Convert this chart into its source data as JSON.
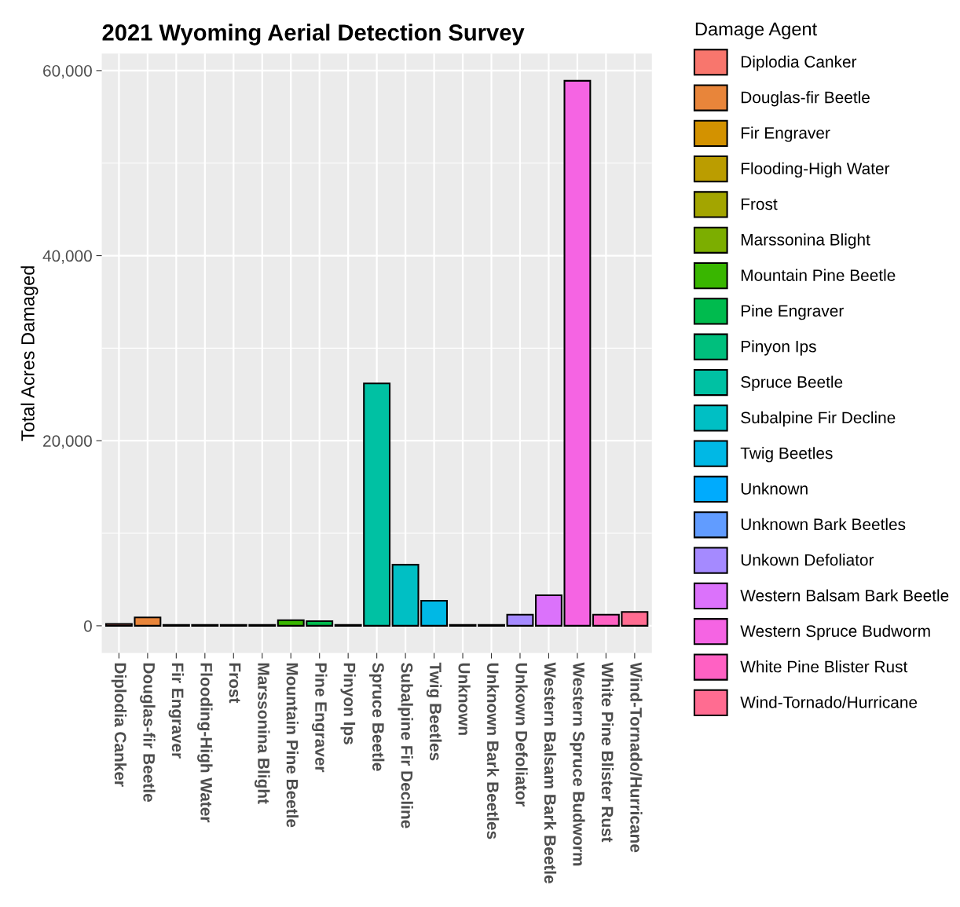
{
  "chart_data": {
    "type": "bar",
    "title": "2021 Wyoming Aerial Detection Survey",
    "ylabel": "Total Acres Damaged",
    "legend_title": "Damage Agent",
    "categories": [
      "Diplodia Canker",
      "Douglas-fir Beetle",
      "Fir Engraver",
      "Flooding-High Water",
      "Frost",
      "Marssonina Blight",
      "Mountain Pine Beetle",
      "Pine Engraver",
      "Pinyon Ips",
      "Spruce Beetle",
      "Subalpine Fir Decline",
      "Twig Beetles",
      "Unknown",
      "Unknown Bark Beetles",
      "Unkown Defoliator",
      "Western Balsam Bark Beetle",
      "Western Spruce Budworm",
      "White Pine Blister Rust",
      "Wind-Tornado/Hurricane"
    ],
    "series": [
      {
        "name": "Diplodia Canker",
        "color": "#F8766D",
        "values": [
          200,
          null,
          null,
          null,
          null,
          null,
          null,
          null,
          null,
          null,
          null,
          null,
          null,
          null,
          null,
          null,
          null,
          null,
          null
        ]
      },
      {
        "name": "Douglas-fir Beetle",
        "color": "#E8853A",
        "values": [
          null,
          900,
          null,
          null,
          null,
          null,
          null,
          null,
          null,
          null,
          null,
          null,
          null,
          null,
          null,
          null,
          null,
          null,
          null
        ]
      },
      {
        "name": "Fir Engraver",
        "color": "#D39200",
        "values": [
          null,
          null,
          100,
          null,
          null,
          null,
          null,
          null,
          null,
          null,
          null,
          null,
          null,
          null,
          null,
          null,
          null,
          null,
          null
        ]
      },
      {
        "name": "Flooding-High Water",
        "color": "#BB9D00",
        "values": [
          null,
          null,
          null,
          100,
          null,
          null,
          null,
          null,
          null,
          null,
          null,
          null,
          null,
          null,
          null,
          null,
          null,
          null,
          null
        ]
      },
      {
        "name": "Frost",
        "color": "#A3A500",
        "values": [
          null,
          null,
          null,
          null,
          100,
          null,
          null,
          null,
          null,
          null,
          null,
          null,
          null,
          null,
          null,
          null,
          null,
          null,
          null
        ]
      },
      {
        "name": "Marssonina Blight",
        "color": "#7CAE00",
        "values": [
          null,
          null,
          null,
          null,
          null,
          100,
          null,
          null,
          null,
          null,
          null,
          null,
          null,
          null,
          null,
          null,
          null,
          null,
          null
        ]
      },
      {
        "name": "Mountain Pine Beetle",
        "color": "#39B600",
        "values": [
          null,
          null,
          null,
          null,
          null,
          null,
          600,
          null,
          null,
          null,
          null,
          null,
          null,
          null,
          null,
          null,
          null,
          null,
          null
        ]
      },
      {
        "name": "Pine Engraver",
        "color": "#00BB4E",
        "values": [
          null,
          null,
          null,
          null,
          null,
          null,
          null,
          500,
          null,
          null,
          null,
          null,
          null,
          null,
          null,
          null,
          null,
          null,
          null
        ]
      },
      {
        "name": "Pinyon Ips",
        "color": "#00BF7D",
        "values": [
          null,
          null,
          null,
          null,
          null,
          null,
          null,
          null,
          100,
          null,
          null,
          null,
          null,
          null,
          null,
          null,
          null,
          null,
          null
        ]
      },
      {
        "name": "Spruce Beetle",
        "color": "#00C1A3",
        "values": [
          null,
          null,
          null,
          null,
          null,
          null,
          null,
          null,
          null,
          26200,
          null,
          null,
          null,
          null,
          null,
          null,
          null,
          null,
          null
        ]
      },
      {
        "name": "Subalpine Fir Decline",
        "color": "#00BFC4",
        "values": [
          null,
          null,
          null,
          null,
          null,
          null,
          null,
          null,
          null,
          null,
          6600,
          null,
          null,
          null,
          null,
          null,
          null,
          null,
          null
        ]
      },
      {
        "name": "Twig Beetles",
        "color": "#00B8E5",
        "values": [
          null,
          null,
          null,
          null,
          null,
          null,
          null,
          null,
          null,
          null,
          null,
          2700,
          null,
          null,
          null,
          null,
          null,
          null,
          null
        ]
      },
      {
        "name": "Unknown",
        "color": "#00ABFD",
        "values": [
          null,
          null,
          null,
          null,
          null,
          null,
          null,
          null,
          null,
          null,
          null,
          null,
          100,
          null,
          null,
          null,
          null,
          null,
          null
        ]
      },
      {
        "name": "Unknown Bark Beetles",
        "color": "#619CFF",
        "values": [
          null,
          null,
          null,
          null,
          null,
          null,
          null,
          null,
          null,
          null,
          null,
          null,
          null,
          100,
          null,
          null,
          null,
          null,
          null
        ]
      },
      {
        "name": "Unkown Defoliator",
        "color": "#A58AFF",
        "values": [
          null,
          null,
          null,
          null,
          null,
          null,
          null,
          null,
          null,
          null,
          null,
          null,
          null,
          null,
          1200,
          null,
          null,
          null,
          null
        ]
      },
      {
        "name": "Western Balsam Bark Beetle",
        "color": "#DB72FB",
        "values": [
          null,
          null,
          null,
          null,
          null,
          null,
          null,
          null,
          null,
          null,
          null,
          null,
          null,
          null,
          null,
          3300,
          null,
          null,
          null
        ]
      },
      {
        "name": "Western Spruce Budworm",
        "color": "#F564E3",
        "values": [
          null,
          null,
          null,
          null,
          null,
          null,
          null,
          null,
          null,
          null,
          null,
          null,
          null,
          null,
          null,
          null,
          58900,
          null,
          null
        ]
      },
      {
        "name": "White Pine Blister Rust",
        "color": "#FF61C3",
        "values": [
          null,
          null,
          null,
          null,
          null,
          null,
          null,
          null,
          null,
          null,
          null,
          null,
          null,
          null,
          null,
          null,
          null,
          1200,
          null
        ]
      },
      {
        "name": "Wind-Tornado/Hurricane",
        "color": "#FF6C91",
        "values": [
          null,
          null,
          null,
          null,
          null,
          null,
          null,
          null,
          null,
          null,
          null,
          null,
          null,
          null,
          null,
          null,
          null,
          null,
          1500
        ]
      }
    ],
    "ylim": [
      -2945,
      61845
    ],
    "yticks": [
      0,
      {
        "value": 20000,
        "label": "20,000"
      },
      {
        "value": 40000,
        "label": "40,000"
      },
      {
        "value": 60000,
        "label": "60,000"
      }
    ],
    "grid": true,
    "legend": "right"
  }
}
